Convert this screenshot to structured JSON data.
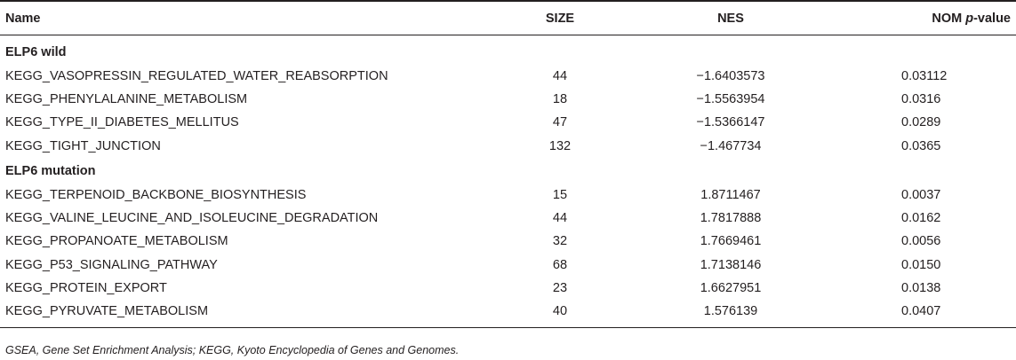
{
  "table": {
    "headers": {
      "name": "Name",
      "size": "SIZE",
      "nes": "NES",
      "nom_prefix": "NOM ",
      "nom_italic": "p",
      "nom_suffix": "-value"
    },
    "groups": [
      {
        "label": "ELP6 wild",
        "rows": [
          {
            "name": "KEGG_VASOPRESSIN_REGULATED_WATER_REABSORPTION",
            "size": "44",
            "nes": "−1.6403573",
            "nom": "0.03112"
          },
          {
            "name": "KEGG_PHENYLALANINE_METABOLISM",
            "size": "18",
            "nes": "−1.5563954",
            "nom": "0.0316"
          },
          {
            "name": "KEGG_TYPE_II_DIABETES_MELLITUS",
            "size": "47",
            "nes": "−1.5366147",
            "nom": "0.0289"
          },
          {
            "name": "KEGG_TIGHT_JUNCTION",
            "size": "132",
            "nes": "−1.467734",
            "nom": "0.0365"
          }
        ]
      },
      {
        "label": "ELP6 mutation",
        "rows": [
          {
            "name": "KEGG_TERPENOID_BACKBONE_BIOSYNTHESIS",
            "size": "15",
            "nes": "1.8711467",
            "nom": "0.0037"
          },
          {
            "name": "KEGG_VALINE_LEUCINE_AND_ISOLEUCINE_DEGRADATION",
            "size": "44",
            "nes": "1.7817888",
            "nom": "0.0162"
          },
          {
            "name": "KEGG_PROPANOATE_METABOLISM",
            "size": "32",
            "nes": "1.7669461",
            "nom": "0.0056"
          },
          {
            "name": "KEGG_P53_SIGNALING_PATHWAY",
            "size": "68",
            "nes": "1.7138146",
            "nom": "0.0150"
          },
          {
            "name": "KEGG_PROTEIN_EXPORT",
            "size": "23",
            "nes": "1.6627951",
            "nom": "0.0138"
          },
          {
            "name": "KEGG_PYRUVATE_METABOLISM",
            "size": "40",
            "nes": "1.576139",
            "nom": "0.0407"
          }
        ]
      }
    ]
  },
  "footnote": "GSEA, Gene Set Enrichment Analysis; KEGG, Kyoto Encyclopedia of Genes and Genomes."
}
